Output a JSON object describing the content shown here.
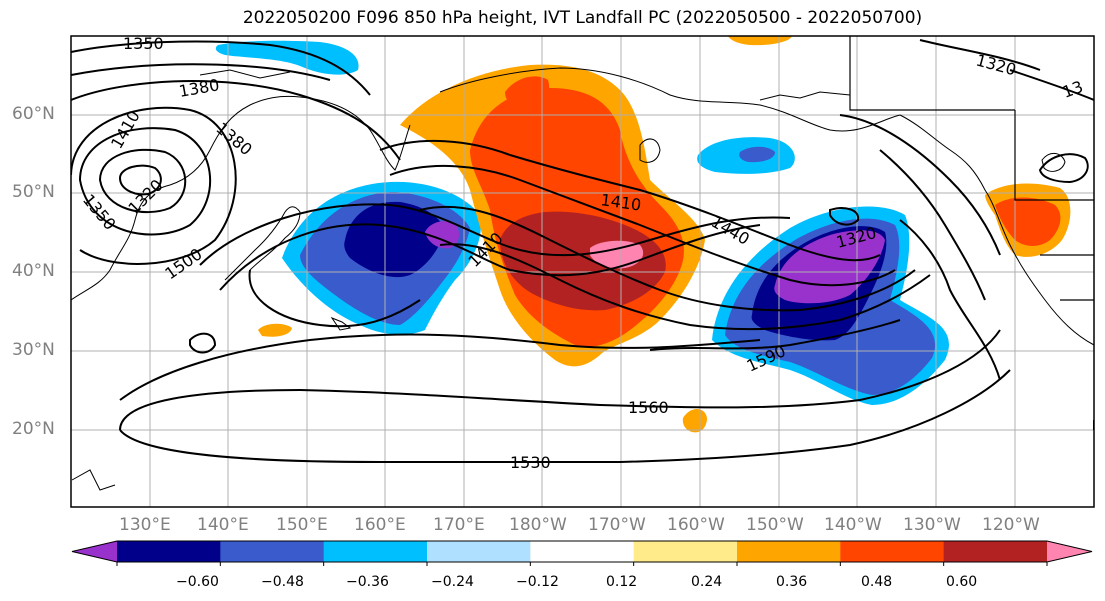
{
  "title": "2022050200 F096 850 hPa height, IVT Landfall PC (2022050500 - 2022050700)",
  "lat_labels": [
    "60°N",
    "50°N",
    "40°N",
    "30°N",
    "20°N"
  ],
  "lon_labels": [
    "130°E",
    "140°E",
    "150°E",
    "160°E",
    "170°E",
    "180°W",
    "170°W",
    "160°W",
    "150°W",
    "140°W",
    "130°W",
    "120°W"
  ],
  "contour_labels": [
    "1350",
    "1380",
    "1410",
    "1380",
    "1350",
    "1320",
    "1500",
    "1410",
    "1410",
    "1440",
    "1320",
    "1320",
    "1590",
    "1560",
    "1530",
    "13"
  ],
  "colorbar": {
    "tick_labels": [
      "−0.60",
      "−0.48",
      "−0.36",
      "−0.24",
      "−0.12",
      "0.12",
      "0.24",
      "0.36",
      "0.48",
      "0.60"
    ],
    "colors": [
      "#9932CC",
      "#00008B",
      "#3A5BCC",
      "#00BFFF",
      "#B0E0FF",
      "#FFFFFF",
      "#FFEB8A",
      "#FFA500",
      "#FF4500",
      "#B22222",
      "#FF85B0"
    ]
  }
}
